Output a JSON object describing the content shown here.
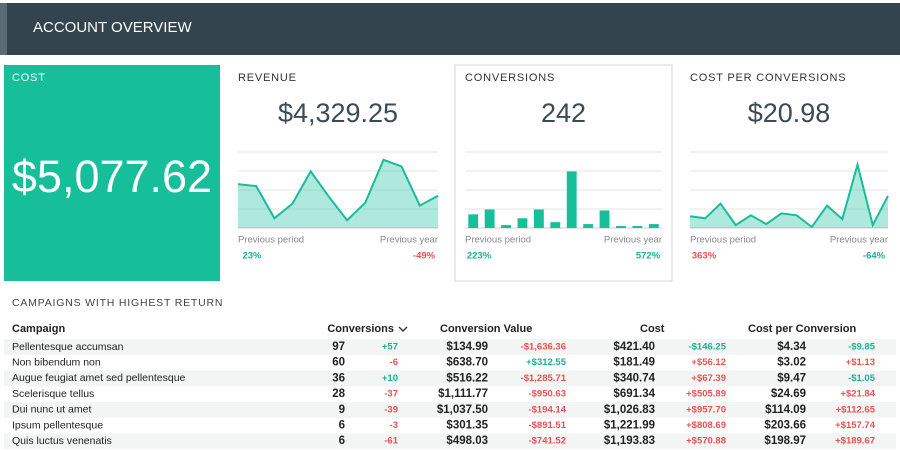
{
  "header": {
    "title": "ACCOUNT OVERVIEW"
  },
  "cards": [
    {
      "label": "COST",
      "value": "$5,077.62"
    },
    {
      "label": "REVENUE",
      "value": "$4,329.25",
      "chart": {
        "type": "area",
        "values": [
          45,
          43,
          10,
          25,
          58,
          32,
          8,
          26,
          70,
          63,
          23,
          33
        ],
        "ylim": [
          0,
          80
        ],
        "color": "#1abc9c"
      },
      "comparisons": [
        {
          "label": "Previous period",
          "value": "23%",
          "color": "#19b394"
        },
        {
          "label": "Previous year",
          "value": "-49%",
          "color": "#e8534f"
        }
      ]
    },
    {
      "label": "CONVERSIONS",
      "value": "242",
      "chart": {
        "type": "bar",
        "values": [
          14,
          19,
          3,
          10,
          19,
          6,
          58,
          4,
          18,
          2,
          2,
          4
        ],
        "ylim": [
          0,
          80
        ],
        "color": "#16bf99"
      },
      "comparisons": [
        {
          "label": "Previous period",
          "value": "223%",
          "color": "#19b394"
        },
        {
          "label": "Previous year",
          "value": "572%",
          "color": "#19b394"
        }
      ]
    },
    {
      "label": "COST PER CONVERSIONS",
      "value": "$20.98",
      "chart": {
        "type": "area",
        "values": [
          12,
          10,
          25,
          3,
          13,
          4,
          15,
          13,
          1,
          23,
          9,
          65,
          3,
          33
        ],
        "ylim": [
          0,
          80
        ],
        "color": "#1abc9c"
      },
      "comparisons": [
        {
          "label": "Previous period",
          "value": "363%",
          "color": "#e8534f"
        },
        {
          "label": "Previous year",
          "value": "-64%",
          "color": "#19b394"
        }
      ]
    }
  ],
  "table": {
    "title": "CAMPAIGNS WITH HIGHEST RETURN",
    "columns": [
      "Campaign",
      "Conversions",
      "Conversion Value",
      "Cost",
      "Cost per Conversion"
    ],
    "rows": [
      [
        "Pellentesque accumsan",
        "97",
        "+57",
        "$134.99",
        "-$1,636.36",
        "$421.40",
        "-$146.25",
        "$4.34",
        "-$9.85"
      ],
      [
        "Non bibendum non",
        "60",
        "-6",
        "$638.70",
        "+$312.55",
        "$181.49",
        "+$56.12",
        "$3.02",
        "+$1.13"
      ],
      [
        "Augue feugiat amet sed pellentesque",
        "36",
        "+10",
        "$516.22",
        "-$1,285.71",
        "$340.74",
        "+$67.39",
        "$9.47",
        "-$1.05"
      ],
      [
        "Scelerisque tellus",
        "28",
        "-37",
        "$1,111.77",
        "-$950.63",
        "$691.34",
        "+$505.89",
        "$24.69",
        "+$21.84"
      ],
      [
        "Dui nunc ut amet",
        "9",
        "-39",
        "$1,037.50",
        "-$194.14",
        "$1,026.83",
        "+$957.70",
        "$114.09",
        "+$112.65"
      ],
      [
        "Ipsum pellentesque",
        "6",
        "-3",
        "$301.35",
        "-$891.51",
        "$1,221.99",
        "+$808.69",
        "$203.66",
        "+$157.74"
      ],
      [
        "Quis luctus venenatis",
        "6",
        "-61",
        "$498.03",
        "-$741.52",
        "$1,193.83",
        "+$570.88",
        "$198.97",
        "+$189.67"
      ]
    ]
  }
}
